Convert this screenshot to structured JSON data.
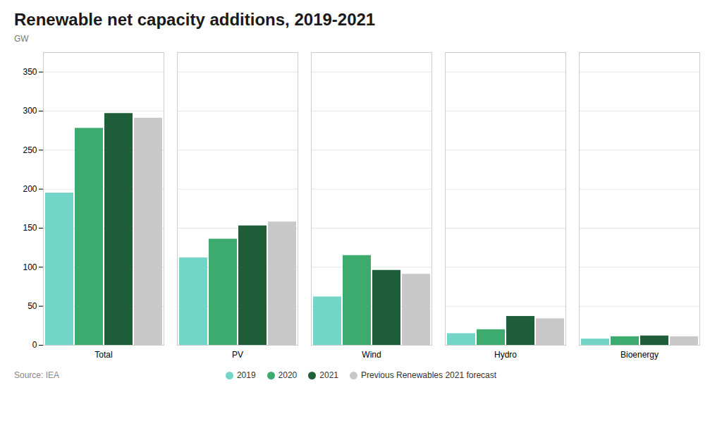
{
  "chart_data": {
    "type": "bar",
    "title": "Renewable net capacity additions, 2019-2021",
    "ylabel": "GW",
    "source": "Source: IEA",
    "categories": [
      "Total",
      "PV",
      "Wind",
      "Hydro",
      "Bioenergy"
    ],
    "series": [
      {
        "name": "2019",
        "color": "#72D5C8",
        "values": [
          195,
          112,
          62,
          15,
          8
        ]
      },
      {
        "name": "2020",
        "color": "#3DAA6E",
        "values": [
          278,
          136,
          115,
          20,
          11
        ]
      },
      {
        "name": "2021",
        "color": "#1E5E38",
        "values": [
          297,
          153,
          96,
          37,
          12
        ]
      },
      {
        "name": "Previous Renewables 2021 forecast",
        "color": "#C8C8C8",
        "values": [
          291,
          158,
          91,
          34,
          11
        ]
      }
    ],
    "ylim": [
      0,
      375
    ],
    "yticks": [
      0,
      50,
      100,
      150,
      200,
      250,
      300,
      350
    ],
    "grid": true,
    "legend": "bottom"
  }
}
